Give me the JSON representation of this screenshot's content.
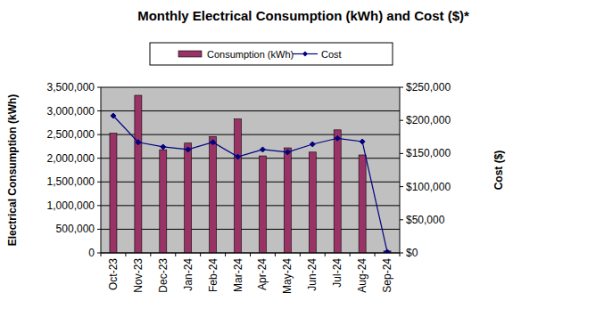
{
  "chart_data": {
    "type": "bar",
    "title": "Monthly Electrical Consumption (kWh) and Cost ($)*",
    "y_label": "Electrical Consumption (kWh)",
    "y2_label": "Cost ($)",
    "categories": [
      "Oct-23",
      "Nov-23",
      "Dec-23",
      "Jan-24",
      "Feb-24",
      "Mar-24",
      "Apr-24",
      "May-24",
      "Jun-24",
      "Jul-24",
      "Aug-24",
      "Sep-24"
    ],
    "series": [
      {
        "name": "Consumption (kWh)",
        "type": "bar",
        "color": "#993366",
        "values": [
          2530000,
          3330000,
          2180000,
          2320000,
          2460000,
          2830000,
          2050000,
          2220000,
          2130000,
          2600000,
          2070000,
          40000
        ]
      },
      {
        "name": "Cost",
        "type": "line",
        "color": "#000080",
        "marker": "diamond",
        "axis": "y2",
        "values": [
          207000,
          167000,
          160000,
          156000,
          167000,
          145000,
          156000,
          152000,
          164000,
          173000,
          168000,
          1500
        ]
      }
    ],
    "ylim": [
      0,
      3500000
    ],
    "yticks": [
      0,
      {
        "value": 500000,
        "label": "500,000"
      },
      {
        "value": 1000000,
        "label": "1,000,000"
      },
      {
        "value": 1500000,
        "label": "1,500,000"
      },
      {
        "value": 2000000,
        "label": "2,000,000"
      },
      {
        "value": 2500000,
        "label": "2,500,000"
      },
      {
        "value": 3000000,
        "label": "3,000,000"
      },
      {
        "value": 3500000,
        "label": "3,500,000"
      }
    ],
    "y2lim": [
      0,
      250000
    ],
    "y2ticks": [
      {
        "value": 0,
        "label": "$0"
      },
      {
        "value": 50000,
        "label": "$50,000"
      },
      {
        "value": 100000,
        "label": "$100,000"
      },
      {
        "value": 150000,
        "label": "$150,000"
      },
      {
        "value": 200000,
        "label": "$200,000"
      },
      {
        "value": 250000,
        "label": "$250,000"
      }
    ],
    "grid": true,
    "legend": "top"
  }
}
